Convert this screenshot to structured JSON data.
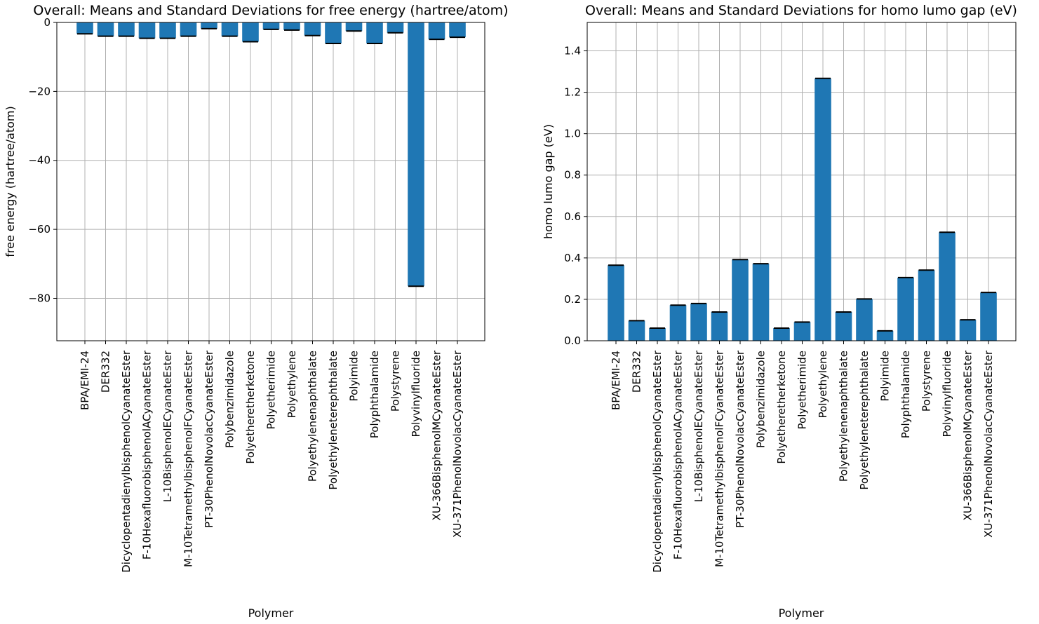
{
  "chart_data": [
    {
      "type": "bar",
      "title": "Overall: Means and Standard Deviations for free energy (hartree/atom)",
      "xlabel": "Polymer",
      "ylabel": "free energy (hartree/atom)",
      "ylim": [
        -92.3,
        0
      ],
      "yticks": [
        0,
        -20,
        -40,
        -60,
        -80
      ],
      "ytick_labels": [
        "0",
        "−20",
        "−40",
        "−60",
        "−80"
      ],
      "grid": true,
      "categories": [
        "BPA/EMI-24",
        "DER332",
        "DicyclopentadienylbisphenolCyanateEster",
        "F-10HexafluorobisphenolACyanateEster",
        "L-10BisphenolECyanateEster",
        "M-10TetramethylbisphenolFCyanateEster",
        "PT-30PhenolNovolacCyanateEster",
        "Polybenzimidazole",
        "Polyetheretherketone",
        "Polyetherimide",
        "Polyethylene",
        "Polyethylenenaphthalate",
        "Polyethyleneterephthalate",
        "Polyimide",
        "Polyphthalamide",
        "Polystyrene",
        "Polyvinylfluoride",
        "XU-366BisphenolMCyanateEster",
        "XU-371PhenolNovolacCyanateEster"
      ],
      "values": [
        -3.3,
        -4.0,
        -4.0,
        -4.6,
        -4.6,
        -4.0,
        -1.8,
        -4.0,
        -5.6,
        -2.0,
        -2.2,
        -3.8,
        -6.1,
        -2.5,
        -6.1,
        -3.0,
        -76.5,
        -4.9,
        -4.3
      ],
      "errors": [
        0,
        0,
        0,
        0,
        0,
        0,
        0,
        0,
        0,
        0,
        0,
        0,
        0,
        0,
        0,
        0,
        0,
        0,
        0
      ]
    },
    {
      "type": "bar",
      "title": "Overall: Means and Standard Deviations for homo lumo gap (eV)",
      "xlabel": "Polymer",
      "ylabel": "homo lumo gap (eV)",
      "ylim": [
        0,
        1.5372
      ],
      "yticks": [
        0.0,
        0.2,
        0.4,
        0.6,
        0.8,
        1.0,
        1.2,
        1.4
      ],
      "ytick_labels": [
        "0.0",
        "0.2",
        "0.4",
        "0.6",
        "0.8",
        "1.0",
        "1.2",
        "1.4"
      ],
      "grid": true,
      "categories": [
        "BPA/EMI-24",
        "DER332",
        "DicyclopentadienylbisphenolCyanateEster",
        "F-10HexafluorobisphenolACyanateEster",
        "L-10BisphenolECyanateEster",
        "M-10TetramethylbisphenolFCyanateEster",
        "PT-30PhenolNovolacCyanateEster",
        "Polybenzimidazole",
        "Polyetheretherketone",
        "Polyetherimide",
        "Polyethylene",
        "Polyethylenenaphthalate",
        "Polyethyleneterephthalate",
        "Polyimide",
        "Polyphthalamide",
        "Polystyrene",
        "Polyvinylfluoride",
        "XU-366BisphenolMCyanateEster",
        "XU-371PhenolNovolacCyanateEster"
      ],
      "values": [
        0.365,
        0.097,
        0.061,
        0.172,
        0.18,
        0.139,
        0.392,
        0.372,
        0.061,
        0.09,
        1.267,
        0.139,
        0.202,
        0.048,
        0.305,
        0.341,
        0.524,
        0.101,
        0.233
      ],
      "errors": [
        0,
        0,
        0,
        0,
        0,
        0,
        0,
        0,
        0,
        0,
        0,
        0,
        0,
        0,
        0,
        0,
        0,
        0,
        0
      ]
    }
  ]
}
